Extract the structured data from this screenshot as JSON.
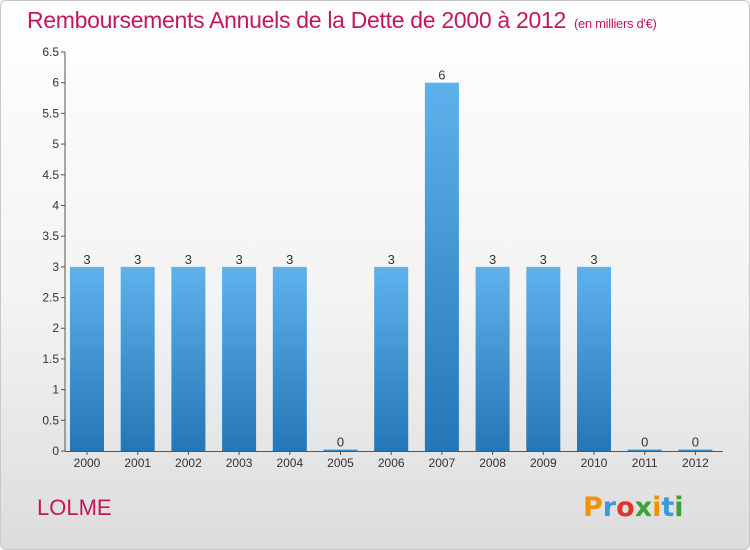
{
  "header": {
    "title": "Remboursements Annuels de la Dette de 2000 à 2012",
    "subtitle": "(en milliers d'€)"
  },
  "footer": {
    "commune": "LOLME",
    "brand": "Proxiti"
  },
  "colors": {
    "title": "#c2185b",
    "bar_top": "#5aaee8",
    "bar_bottom": "#2878b8",
    "axis": "#555555"
  },
  "chart_data": {
    "type": "bar",
    "categories": [
      "2000",
      "2001",
      "2002",
      "2003",
      "2004",
      "2005",
      "2006",
      "2007",
      "2008",
      "2009",
      "2010",
      "2011",
      "2012"
    ],
    "values": [
      3,
      3,
      3,
      3,
      3,
      0,
      3,
      6,
      3,
      3,
      3,
      0,
      0
    ],
    "data_labels": [
      "3",
      "3",
      "3",
      "3",
      "3",
      "0",
      "3",
      "6",
      "3",
      "3",
      "3",
      "0",
      "0"
    ],
    "yticks": [
      0,
      0.5,
      1,
      1.5,
      2,
      2.5,
      3,
      3.5,
      4,
      4.5,
      5,
      5.5,
      6,
      6.5
    ],
    "ytick_labels": [
      "0",
      "0.5",
      "1",
      "1.5",
      "2",
      "2.5",
      "3",
      "3.5",
      "4",
      "4.5",
      "5",
      "5.5",
      "6",
      "6.5"
    ],
    "ylim": [
      0,
      6.5
    ],
    "title": "Remboursements Annuels de la Dette de 2000 à 2012",
    "xlabel": "",
    "ylabel": "",
    "grid": false
  }
}
